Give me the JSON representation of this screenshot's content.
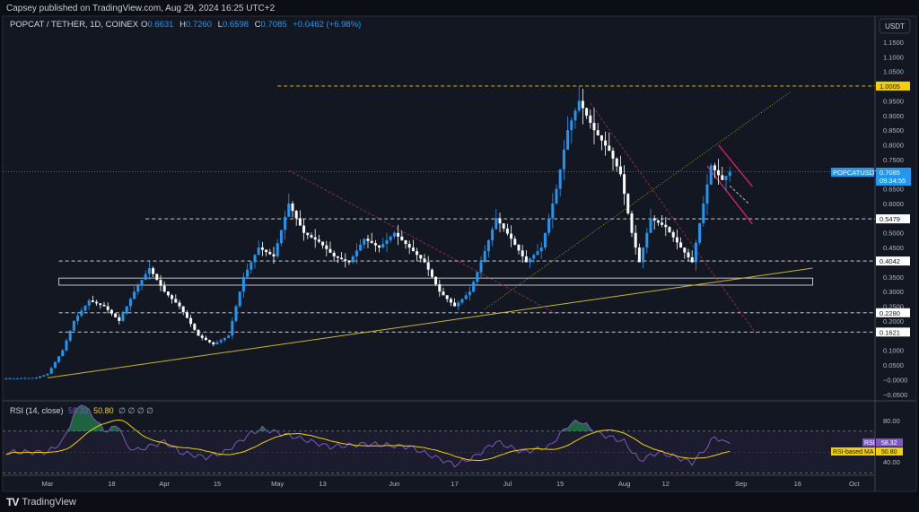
{
  "publisher": "Capsey published on TradingView.com, Aug 29, 2024 16:25 UTC+2",
  "legend": {
    "symbol": "POPCAT / TETHER, 1D, COINEX",
    "o_label": "O",
    "o": "0.6631",
    "h_label": "H",
    "h": "0.7260",
    "l_label": "L",
    "l": "0.6598",
    "c_label": "C",
    "c": "0.7085",
    "change": "+0.0462 (+6.98%)"
  },
  "currency_button": "USDT",
  "price_tag": {
    "symbol": "POPCATUSDT",
    "price": "0.7085",
    "countdown": "09:34:55"
  },
  "rsi_legend": {
    "title": "RSI (14, close)",
    "rsi": "58.32",
    "ma": "50.80",
    "extras": "∅ ∅ ∅ ∅"
  },
  "rsi_tags": {
    "rsi_label": "RSI",
    "rsi_value": "58.32",
    "ma_label": "RSI-based MA",
    "ma_value": "50.80"
  },
  "rsi_ticks": [
    "80.00",
    "40.00"
  ],
  "brand": "TradingView",
  "colors": {
    "up": "#2196f3",
    "down": "#ffffff",
    "rsi": "#7e57c2",
    "rsi_ma": "#f5d000",
    "level_yellow": "#f5d000",
    "trend": "#c9b820",
    "red": "#9c2b4e",
    "pink": "#e91e63"
  },
  "chart_data": {
    "type": "candlestick",
    "symbol": "POPCAT / TETHER",
    "interval": "1D",
    "ylim": [
      -0.07,
      1.18
    ],
    "xlim": [
      "2024-02-19",
      "2024-10-06"
    ],
    "y_ticks": [
      "1.1500",
      "1.1000",
      "1.0500",
      "0.9500",
      "0.9000",
      "0.8500",
      "0.8000",
      "0.7500",
      "0.6500",
      "0.6000",
      "0.5000",
      "0.4500",
      "0.3500",
      "0.3000",
      "0.2500",
      "0.2000",
      "0.1000",
      "0.0500",
      "−0.0000",
      "−0.0500"
    ],
    "x_ticks": [
      {
        "date": "2024-03-01",
        "label": "Mar"
      },
      {
        "date": "2024-03-18",
        "label": "18"
      },
      {
        "date": "2024-04-01",
        "label": "Apr"
      },
      {
        "date": "2024-04-15",
        "label": "15"
      },
      {
        "date": "2024-05-01",
        "label": "May"
      },
      {
        "date": "2024-05-13",
        "label": "13"
      },
      {
        "date": "2024-06-01",
        "label": "Jun"
      },
      {
        "date": "2024-06-17",
        "label": "17"
      },
      {
        "date": "2024-07-01",
        "label": "Jul"
      },
      {
        "date": "2024-07-15",
        "label": "15"
      },
      {
        "date": "2024-08-01",
        "label": "Aug"
      },
      {
        "date": "2024-08-12",
        "label": "12"
      },
      {
        "date": "2024-09-01",
        "label": "Sep"
      },
      {
        "date": "2024-09-16",
        "label": "16"
      },
      {
        "date": "2024-10-01",
        "label": "Oct"
      }
    ],
    "close_keypoints": [
      [
        "2024-02-19",
        0.004
      ],
      [
        "2024-02-27",
        0.006
      ],
      [
        "2024-03-01",
        0.02
      ],
      [
        "2024-03-05",
        0.1
      ],
      [
        "2024-03-08",
        0.2
      ],
      [
        "2024-03-12",
        0.27
      ],
      [
        "2024-03-16",
        0.25
      ],
      [
        "2024-03-20",
        0.2
      ],
      [
        "2024-03-24",
        0.3
      ],
      [
        "2024-03-28",
        0.38
      ],
      [
        "2024-04-01",
        0.3
      ],
      [
        "2024-04-05",
        0.25
      ],
      [
        "2024-04-10",
        0.15
      ],
      [
        "2024-04-14",
        0.12
      ],
      [
        "2024-04-18",
        0.15
      ],
      [
        "2024-04-22",
        0.35
      ],
      [
        "2024-04-26",
        0.45
      ],
      [
        "2024-04-30",
        0.42
      ],
      [
        "2024-05-04",
        0.6
      ],
      [
        "2024-05-08",
        0.5
      ],
      [
        "2024-05-12",
        0.47
      ],
      [
        "2024-05-16",
        0.42
      ],
      [
        "2024-05-20",
        0.4
      ],
      [
        "2024-05-24",
        0.48
      ],
      [
        "2024-05-28",
        0.45
      ],
      [
        "2024-06-01",
        0.5
      ],
      [
        "2024-06-05",
        0.45
      ],
      [
        "2024-06-09",
        0.4
      ],
      [
        "2024-06-13",
        0.3
      ],
      [
        "2024-06-17",
        0.25
      ],
      [
        "2024-06-21",
        0.3
      ],
      [
        "2024-06-24",
        0.4
      ],
      [
        "2024-06-28",
        0.55
      ],
      [
        "2024-07-02",
        0.48
      ],
      [
        "2024-07-06",
        0.4
      ],
      [
        "2024-07-10",
        0.45
      ],
      [
        "2024-07-14",
        0.65
      ],
      [
        "2024-07-17",
        0.85
      ],
      [
        "2024-07-20",
        0.95
      ],
      [
        "2024-07-24",
        0.85
      ],
      [
        "2024-07-28",
        0.78
      ],
      [
        "2024-07-31",
        0.7
      ],
      [
        "2024-08-03",
        0.5
      ],
      [
        "2024-08-05",
        0.4
      ],
      [
        "2024-08-08",
        0.55
      ],
      [
        "2024-08-12",
        0.52
      ],
      [
        "2024-08-16",
        0.45
      ],
      [
        "2024-08-19",
        0.4
      ],
      [
        "2024-08-22",
        0.6
      ],
      [
        "2024-08-24",
        0.73
      ],
      [
        "2024-08-27",
        0.68
      ],
      [
        "2024-08-29",
        0.7085
      ]
    ],
    "last_price": 0.7085,
    "levels": [
      {
        "price": 1.0005,
        "label": "1.0005",
        "from": "2024-05-01",
        "style": "yellow"
      },
      {
        "price": 0.5479,
        "label": "0.5479",
        "from": "2024-03-27",
        "style": "white"
      },
      {
        "price": 0.4042,
        "label": "0.4042",
        "from": "2024-03-04",
        "style": "white"
      },
      {
        "price": 0.228,
        "label": "0.2280",
        "from": "2024-03-04",
        "style": "white"
      },
      {
        "price": 0.1621,
        "label": "0.1621",
        "from": "2024-03-04",
        "style": "white"
      }
    ],
    "zone": {
      "from": "2024-03-04",
      "to": "2024-09-20",
      "top": 0.346,
      "bottom": 0.322
    },
    "trendlines": [
      {
        "from": [
          "2024-03-01",
          0.006
        ],
        "to": [
          "2024-09-20",
          0.38
        ],
        "style": "trend"
      },
      {
        "from": [
          "2024-06-25",
          0.24
        ],
        "to": [
          "2024-09-14",
          0.98
        ],
        "style": "dotted"
      },
      {
        "from": [
          "2024-05-04",
          0.713
        ],
        "to": [
          "2024-07-14",
          0.224
        ],
        "style": "red"
      },
      {
        "from": [
          "2024-07-23",
          0.942
        ],
        "to": [
          "2024-09-05",
          0.156
        ],
        "style": "red"
      },
      {
        "from": [
          "2024-08-26",
          0.799
        ],
        "to": [
          "2024-09-04",
          0.658
        ],
        "style": "pink"
      },
      {
        "from": [
          "2024-08-23",
          0.728
        ],
        "to": [
          "2024-09-04",
          0.53
        ],
        "style": "pink"
      },
      {
        "from": [
          "2024-08-29",
          0.66
        ],
        "to": [
          "2024-09-03",
          0.6
        ],
        "style": "arrow"
      }
    ],
    "rsi": {
      "ylim": [
        30,
        97
      ],
      "bands": [
        70,
        30
      ],
      "keypoints": [
        [
          "2024-02-19",
          50
        ],
        [
          "2024-03-01",
          50
        ],
        [
          "2024-03-05",
          60
        ],
        [
          "2024-03-08",
          85
        ],
        [
          "2024-03-10",
          97
        ],
        [
          "2024-03-14",
          80
        ],
        [
          "2024-03-16",
          70
        ],
        [
          "2024-03-20",
          75
        ],
        [
          "2024-03-22",
          55
        ],
        [
          "2024-03-25",
          52
        ],
        [
          "2024-04-01",
          60
        ],
        [
          "2024-04-05",
          50
        ],
        [
          "2024-04-12",
          45
        ],
        [
          "2024-04-17",
          50
        ],
        [
          "2024-04-24",
          68
        ],
        [
          "2024-04-27",
          72
        ],
        [
          "2024-05-05",
          65
        ],
        [
          "2024-05-15",
          55
        ],
        [
          "2024-05-25",
          58
        ],
        [
          "2024-06-05",
          55
        ],
        [
          "2024-06-12",
          45
        ],
        [
          "2024-06-17",
          38
        ],
        [
          "2024-06-22",
          45
        ],
        [
          "2024-06-28",
          60
        ],
        [
          "2024-07-05",
          50
        ],
        [
          "2024-07-12",
          55
        ],
        [
          "2024-07-17",
          75
        ],
        [
          "2024-07-20",
          80
        ],
        [
          "2024-07-25",
          68
        ],
        [
          "2024-08-01",
          60
        ],
        [
          "2024-08-05",
          42
        ],
        [
          "2024-08-10",
          50
        ],
        [
          "2024-08-15",
          45
        ],
        [
          "2024-08-19",
          40
        ],
        [
          "2024-08-23",
          55
        ],
        [
          "2024-08-25",
          65
        ],
        [
          "2024-08-27",
          60
        ],
        [
          "2024-08-29",
          58.32
        ]
      ],
      "ma_last": 50.8
    }
  }
}
